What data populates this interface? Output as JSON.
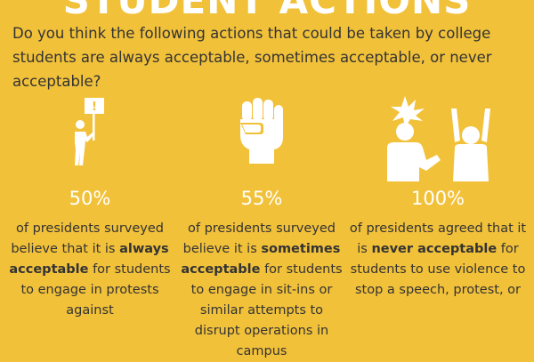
{
  "title": "STUDENT ACTIONS",
  "question": "Do you think the following actions that could be taken by college students are always acceptable, sometimes acceptable, or never acceptable?",
  "columns": [
    {
      "icon": "protester-with-sign-icon",
      "percent": "50%",
      "text_before": "of presidents surveyed believe that it is ",
      "emphasis": "always acceptable",
      "text_after": " for students to engage in protests against"
    },
    {
      "icon": "raised-fist-icon",
      "percent": "55%",
      "text_before": "of presidents surveyed believe it is ",
      "emphasis": "sometimes acceptable",
      "text_after": " for students to engage in sit-ins or similar attempts to disrupt operations in campus"
    },
    {
      "icon": "person-hitting-person-icon",
      "percent": "100%",
      "text_before": "of presidents agreed that it is ",
      "emphasis": "never acceptable",
      "text_after": " for students to use violence to stop a speech, protest, or"
    }
  ],
  "colors": {
    "background": "#f2c13a",
    "text": "#333333",
    "accent": "#ffffff"
  }
}
